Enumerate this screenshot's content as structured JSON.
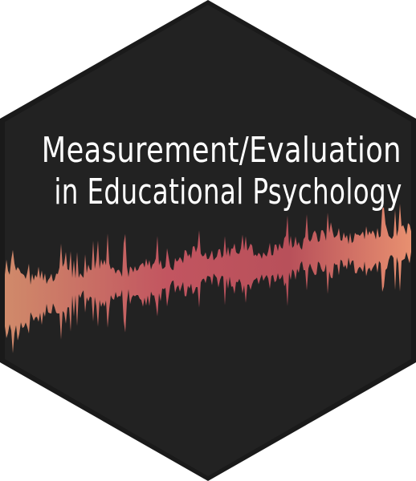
{
  "title": {
    "line1": "Measurement/Evaluation",
    "line2": "in Educational Psychology"
  },
  "colors": {
    "background": "#222222",
    "border": "#1a1a1a",
    "text": "#ffffff",
    "wave_start": "#d08a6a",
    "wave_mid": "#c25560",
    "wave_end": "#e89070"
  },
  "graphic": {
    "shape": "hexagon-icon",
    "decoration": "waveform-icon"
  }
}
